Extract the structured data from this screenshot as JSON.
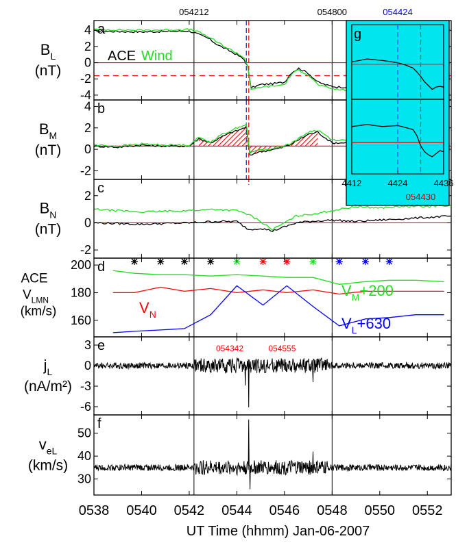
{
  "chart_data": {
    "type": "line",
    "xlabel": "UT Time (hhmm) Jan-06-2007",
    "xlim": [
      538,
      553
    ],
    "xticks": [
      "0538",
      "0540",
      "0542",
      "0544",
      "0546",
      "0548",
      "0550",
      "0552"
    ],
    "xtick_values": [
      538,
      540,
      542,
      544,
      546,
      548,
      550,
      552
    ],
    "top_annotations": [
      {
        "text": "054212",
        "x": 542.2
      },
      {
        "text": "054800",
        "x": 548.0
      }
    ],
    "vertical_lines": [
      542.2,
      548.0
    ],
    "event_lines": [
      {
        "x": 544.4,
        "color": "#3040ff",
        "style": "dashed"
      },
      {
        "x": 544.5,
        "color": "#ff2020",
        "style": "dashed"
      }
    ],
    "colors": {
      "ace": "#000000",
      "wind": "#22dd22",
      "red": "#ff0000",
      "blue": "#0000ff",
      "inset_bg": "#00e5ee"
    },
    "panels": [
      {
        "id": "a",
        "ylabel_main": "B",
        "ylabel_sub": "L",
        "ylabel_unit": "(nT)",
        "ylim": [
          -4.6,
          5.2
        ],
        "yticks": [
          "4",
          "2",
          "0",
          "-2",
          "-4"
        ],
        "ytick_values": [
          4,
          2,
          0,
          -2,
          -4
        ],
        "legend": [
          {
            "label": "ACE",
            "color": "#000000"
          },
          {
            "label": "Wind",
            "color": "#22dd22"
          }
        ],
        "hlines": [
          {
            "y": 0,
            "color": "#ff0000",
            "style": "solid"
          },
          {
            "y": -1.6,
            "color": "#ff0000",
            "style": "dashed"
          }
        ],
        "series": [
          {
            "name": "ACE",
            "color": "#000000",
            "x": [
              538.0,
              540.0,
              542.0,
              542.3,
              542.8,
              543.2,
              543.6,
              544.0,
              544.3,
              544.45,
              544.6,
              545.0,
              545.5,
              546.0,
              546.3,
              546.6,
              547.0,
              547.4,
              547.8,
              548.2,
              548.8
            ],
            "y": [
              3.9,
              3.8,
              3.9,
              3.6,
              3.0,
              2.2,
              1.6,
              1.0,
              0.4,
              -0.4,
              -3.1,
              -2.7,
              -2.6,
              -2.4,
              -1.2,
              -0.7,
              -1.3,
              -2.4,
              -2.8,
              -3.0,
              -3.0
            ]
          },
          {
            "name": "Wind",
            "color": "#22dd22",
            "x": [
              538.0,
              540.0,
              542.0,
              542.3,
              542.8,
              543.2,
              543.6,
              544.0,
              544.3,
              544.45,
              544.6,
              545.0,
              545.5,
              546.0,
              546.3,
              546.6,
              547.0,
              547.4,
              547.8,
              548.2,
              548.8
            ],
            "y": [
              4.1,
              4.0,
              4.1,
              3.9,
              3.2,
              2.5,
              1.8,
              1.2,
              0.6,
              -0.3,
              -3.4,
              -3.0,
              -2.9,
              -2.7,
              -1.4,
              -0.9,
              -1.5,
              -2.7,
              -3.1,
              -3.3,
              -3.4
            ]
          }
        ]
      },
      {
        "id": "b",
        "ylabel_main": "B",
        "ylabel_sub": "M",
        "ylabel_unit": "(nT)",
        "ylim": [
          -2.8,
          4.6
        ],
        "yticks": [
          "4",
          "2",
          "0",
          "-2"
        ],
        "ytick_values": [
          4,
          2,
          0,
          -2
        ],
        "hlines": [
          {
            "y": 0.3,
            "color": "#ff0000",
            "style": "solid"
          }
        ],
        "hatch_ref": 0.3,
        "hatch_range": [
          542.2,
          547.4
        ],
        "series": [
          {
            "name": "ACE",
            "color": "#000000",
            "x": [
              538.0,
              539.0,
              540.0,
              541.0,
              542.0,
              542.4,
              542.9,
              543.4,
              543.8,
              544.1,
              544.4,
              544.55,
              544.8,
              545.3,
              545.8,
              546.2,
              546.6,
              547.0,
              547.4,
              548.0,
              548.8
            ],
            "y": [
              0.3,
              0.2,
              0.4,
              0.3,
              0.3,
              1.0,
              0.6,
              1.2,
              1.6,
              1.8,
              2.1,
              -0.6,
              -0.3,
              -0.1,
              0.1,
              0.4,
              0.9,
              1.4,
              1.6,
              0.6,
              0.6
            ]
          },
          {
            "name": "Wind",
            "color": "#22dd22",
            "x": [
              538.0,
              539.0,
              540.0,
              541.0,
              542.0,
              542.4,
              542.9,
              543.4,
              543.8,
              544.1,
              544.4,
              544.55,
              544.8,
              545.3,
              545.8,
              546.2,
              546.6,
              547.0,
              547.4,
              548.0,
              548.8
            ],
            "y": [
              0.4,
              0.3,
              0.5,
              0.4,
              0.4,
              1.1,
              0.7,
              1.4,
              1.8,
              2.1,
              2.3,
              -0.4,
              -0.1,
              0.0,
              0.2,
              0.5,
              1.0,
              1.6,
              1.8,
              0.9,
              0.8
            ]
          }
        ]
      },
      {
        "id": "c",
        "ylabel_main": "B",
        "ylabel_sub": "N",
        "ylabel_unit": "(nT)",
        "ylim": [
          -2.6,
          3.2
        ],
        "yticks": [
          "2",
          "0",
          "-2"
        ],
        "ytick_values": [
          2,
          0,
          -2
        ],
        "hlines": [
          {
            "y": 0,
            "color": "#ff0000",
            "style": "solid"
          }
        ],
        "series": [
          {
            "name": "ACE",
            "color": "#000000",
            "x": [
              538.0,
              540.0,
              542.0,
              543.0,
              544.0,
              544.5,
              545.0,
              545.5,
              546.0,
              546.5,
              547.0,
              548.0,
              549.0,
              550.0,
              551.0,
              552.0,
              553.0
            ],
            "y": [
              0.0,
              -0.1,
              0.0,
              0.1,
              0.1,
              -0.5,
              -0.4,
              -0.6,
              -0.3,
              0.0,
              0.1,
              0.2,
              0.1,
              0.2,
              0.3,
              0.4,
              0.5
            ]
          },
          {
            "name": "Wind",
            "color": "#22dd22",
            "x": [
              538.0,
              540.0,
              542.0,
              543.0,
              544.0,
              544.5,
              545.0,
              545.5,
              546.0,
              546.5,
              547.0,
              548.0,
              549.0,
              550.0,
              551.0,
              552.0,
              553.0
            ],
            "y": [
              1.0,
              0.8,
              0.9,
              1.0,
              0.9,
              0.6,
              0.1,
              -0.5,
              0.0,
              0.5,
              0.6,
              0.9,
              1.2,
              1.1,
              1.2,
              1.2,
              1.3
            ]
          }
        ]
      },
      {
        "id": "d",
        "ylabel_lines": [
          "ACE",
          "V",
          "(km/s)"
        ],
        "ylabel_sub": "LMN",
        "ylim": [
          148,
          205
        ],
        "yticks": [
          "200",
          "180",
          "160"
        ],
        "ytick_values": [
          200,
          180,
          160
        ],
        "markers": [
          {
            "x": 539.7,
            "color": "#000000"
          },
          {
            "x": 540.8,
            "color": "#000000"
          },
          {
            "x": 541.8,
            "color": "#000000"
          },
          {
            "x": 542.9,
            "color": "#000000"
          },
          {
            "x": 544.0,
            "color": "#22dd22"
          },
          {
            "x": 545.1,
            "color": "#ff0000"
          },
          {
            "x": 546.1,
            "color": "#ff0000"
          },
          {
            "x": 547.2,
            "color": "#22dd22"
          },
          {
            "x": 548.3,
            "color": "#0000ff"
          },
          {
            "x": 549.4,
            "color": "#0000ff"
          },
          {
            "x": 550.4,
            "color": "#0000ff"
          }
        ],
        "series_labels": [
          {
            "main": "V",
            "sub": "M",
            "rest": "+200",
            "color": "#22dd22"
          },
          {
            "main": "V",
            "sub": "N",
            "rest": "",
            "color": "#ff0000"
          },
          {
            "main": "V",
            "sub": "L",
            "rest": "+630",
            "color": "#0000ff"
          }
        ],
        "series": [
          {
            "color": "#22dd22",
            "x": [
              538.8,
              539.7,
              540.8,
              541.8,
              542.9,
              544.0,
              545.1,
              546.1,
              547.2,
              548.3,
              549.4,
              550.4,
              551.5,
              552.7
            ],
            "y": [
              196,
              194,
              193,
              193,
              192,
              193,
              192,
              191,
              191,
              186,
              188,
              189,
              189,
              188
            ]
          },
          {
            "color": "#ff0000",
            "x": [
              538.8,
              539.7,
              540.8,
              541.8,
              542.9,
              544.0,
              545.1,
              546.1,
              547.2,
              548.3,
              549.4,
              550.4,
              551.5,
              552.7
            ],
            "y": [
              180,
              180,
              184,
              181,
              183,
              180,
              182,
              180,
              182,
              179,
              181,
              181,
              181,
              181
            ]
          },
          {
            "color": "#0000ff",
            "x": [
              538.8,
              539.7,
              540.8,
              541.8,
              542.9,
              544.0,
              545.1,
              546.1,
              547.2,
              548.3,
              549.4,
              550.4,
              551.5,
              552.7
            ],
            "y": [
              151,
              152,
              153,
              154,
              164,
              185,
              171,
              185,
              170,
              156,
              161,
              162,
              164,
              164
            ]
          }
        ]
      },
      {
        "id": "e",
        "ylabel_main": "j",
        "ylabel_sub": "L",
        "ylabel_unit": "(nA/m²)",
        "ylim": [
          -7.2,
          4.2
        ],
        "yticks": [
          "3",
          "0",
          "-3",
          "-6"
        ],
        "ytick_values": [
          3,
          0,
          -3,
          -6
        ],
        "noise_base": 0,
        "noise_amplitude": [
          {
            "from": 538,
            "to": 542.2,
            "amp": 0.45
          },
          {
            "from": 542.2,
            "to": 547.8,
            "amp": 1.1
          },
          {
            "from": 547.8,
            "to": 553,
            "amp": 0.45
          }
        ],
        "spikes": [
          {
            "x": 544.5,
            "y": -6.1
          },
          {
            "x": 544.35,
            "y": -2.9
          },
          {
            "x": 547.2,
            "y": -2.4
          }
        ],
        "annotations": [
          {
            "text": "054342",
            "x": 543.7,
            "color": "#ff0000"
          },
          {
            "text": "054555",
            "x": 545.9,
            "color": "#ff0000"
          }
        ]
      },
      {
        "id": "f",
        "ylabel_main": "v",
        "ylabel_sub": "eL",
        "ylabel_unit": "(km/s)",
        "ylim": [
          23,
          58
        ],
        "yticks": [
          "50",
          "40",
          "30"
        ],
        "ytick_values": [
          50,
          40,
          30
        ],
        "noise_base": 35,
        "noise_amplitude": [
          {
            "from": 538,
            "to": 542.2,
            "amp": 1.4
          },
          {
            "from": 542.2,
            "to": 547.8,
            "amp": 3.2
          },
          {
            "from": 547.8,
            "to": 553,
            "amp": 1.4
          }
        ],
        "spikes": [
          {
            "x": 544.5,
            "y": 56
          },
          {
            "x": 544.55,
            "y": 25.5
          },
          {
            "x": 547.2,
            "y": 42
          }
        ]
      }
    ],
    "inset": {
      "id": "g",
      "top_label": "054424",
      "top_label_color": "#0000ff",
      "bottom_label": "054430",
      "bottom_label_color": "#c00000",
      "xticks": [
        "4412",
        "4424",
        "4436"
      ],
      "xtick_values": [
        4412,
        4424,
        4436
      ],
      "xlim": [
        4412,
        4436
      ],
      "blue_line": 4424,
      "red_line": 4430,
      "upper": {
        "x": [
          4412,
          4416,
          4420,
          4424,
          4426,
          4428,
          4429,
          4430,
          4431,
          4432,
          4433,
          4434,
          4435,
          4436
        ],
        "y": [
          0.3,
          0.7,
          0.5,
          0.2,
          -0.1,
          -0.5,
          -1.0,
          -1.6,
          -2.3,
          -2.8,
          -3.3,
          -3.0,
          -2.9,
          -3.0
        ],
        "ylim": [
          -4.6,
          5.2
        ],
        "hline": 0
      },
      "lower": {
        "x": [
          4412,
          4416,
          4420,
          4424,
          4426,
          4428,
          4429,
          4430,
          4431,
          4432,
          4433,
          4434,
          4435,
          4436
        ],
        "y": [
          1.9,
          2.1,
          1.9,
          2.0,
          1.8,
          1.6,
          1.0,
          0.0,
          -0.6,
          -0.9,
          -1.1,
          -0.8,
          -0.5,
          -0.6
        ],
        "ylim": [
          -2.8,
          4.6
        ],
        "hline": 0.3
      }
    }
  }
}
